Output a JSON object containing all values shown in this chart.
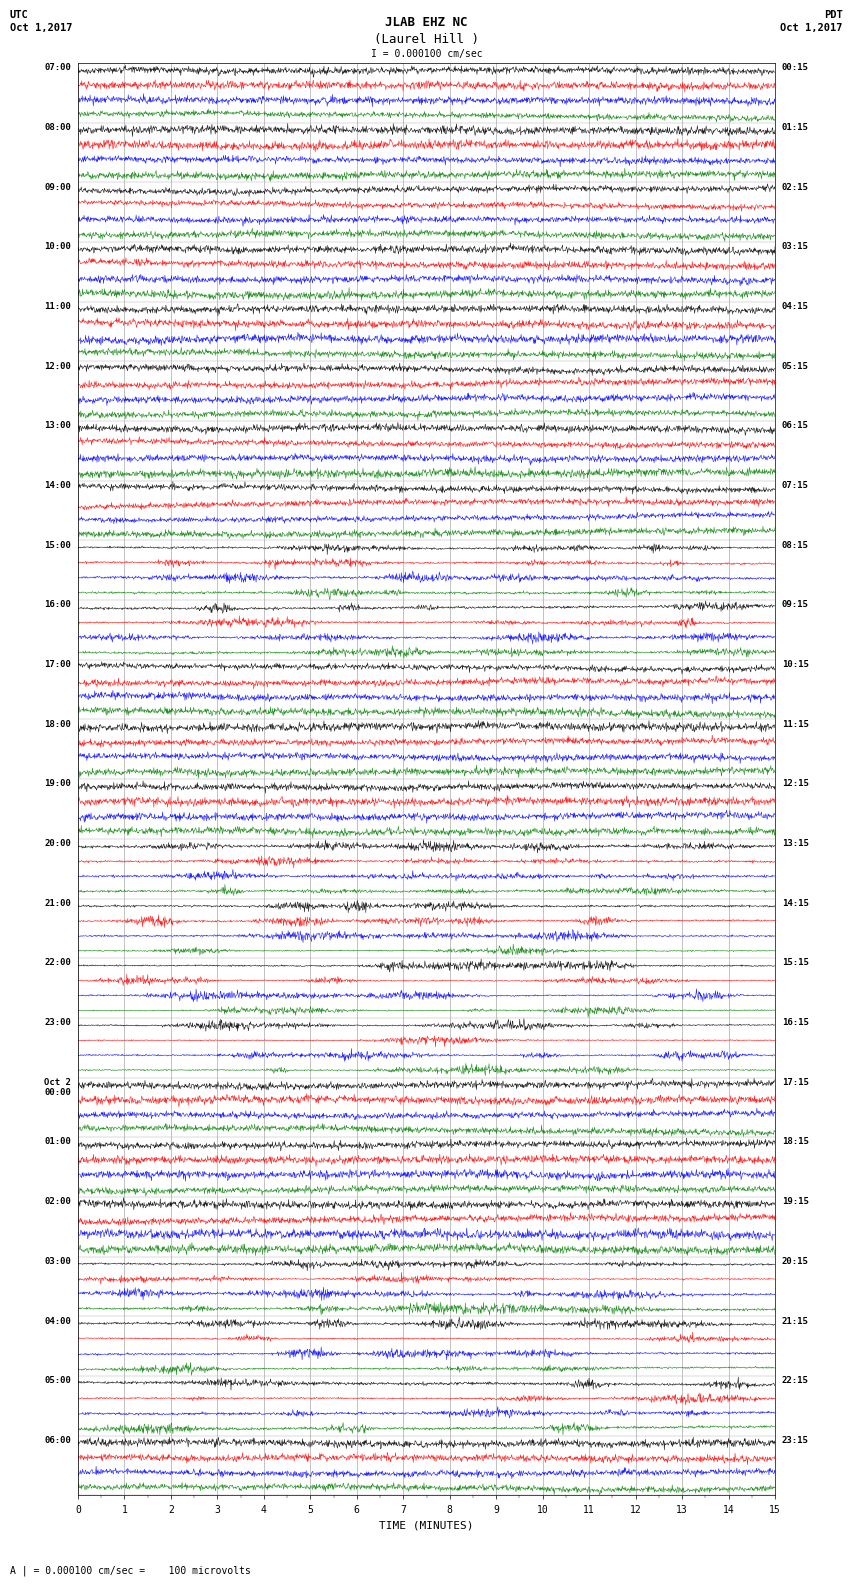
{
  "title_line1": "JLAB EHZ NC",
  "title_line2": "(Laurel Hill )",
  "scale_label": "I = 0.000100 cm/sec",
  "utc_line1": "UTC",
  "utc_line2": "Oct 1,2017",
  "pdt_line1": "PDT",
  "pdt_line2": "Oct 1,2017",
  "xlabel": "TIME (MINUTES)",
  "footer": "A | = 0.000100 cm/sec =    100 microvolts",
  "left_labels": [
    "07:00",
    "08:00",
    "09:00",
    "10:00",
    "11:00",
    "12:00",
    "13:00",
    "14:00",
    "15:00",
    "16:00",
    "17:00",
    "18:00",
    "19:00",
    "20:00",
    "21:00",
    "22:00",
    "23:00",
    "Oct 2\n00:00",
    "01:00",
    "02:00",
    "03:00",
    "04:00",
    "05:00",
    "06:00"
  ],
  "right_labels": [
    "00:15",
    "01:15",
    "02:15",
    "03:15",
    "04:15",
    "05:15",
    "06:15",
    "07:15",
    "08:15",
    "09:15",
    "10:15",
    "11:15",
    "12:15",
    "13:15",
    "14:15",
    "15:15",
    "16:15",
    "17:15",
    "18:15",
    "19:15",
    "20:15",
    "21:15",
    "22:15",
    "23:15"
  ],
  "n_rows": 24,
  "traces_per_row": 4,
  "minutes": 15,
  "colors": [
    "black",
    "red",
    "blue",
    "green"
  ],
  "bg_color": "#ffffff",
  "grid_color": "#aaaaaa",
  "noise_base": 0.08,
  "noise_seed": 42,
  "active_rows": [
    8,
    9,
    13,
    14,
    15,
    16,
    20,
    21,
    22
  ],
  "active_amplitudes": [
    0.35,
    0.45,
    0.3,
    0.5,
    0.6,
    0.55,
    0.4,
    0.45,
    0.35
  ]
}
